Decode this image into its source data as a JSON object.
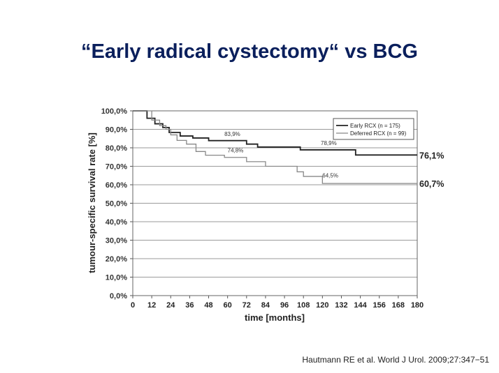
{
  "slide": {
    "title": "“Early radical cystectomy“ vs BCG",
    "citation": "Hautmann  RE et al. World J Urol. 2009;27:347−51"
  },
  "chart_data": {
    "type": "line",
    "step": true,
    "xlabel": "time [months]",
    "ylabel": "tumour-specific survival rate [%]",
    "xlim": [
      0,
      180
    ],
    "ylim": [
      0,
      100
    ],
    "x_ticks": [
      0,
      12,
      24,
      36,
      48,
      60,
      72,
      84,
      96,
      108,
      120,
      132,
      144,
      156,
      168,
      180
    ],
    "y_ticks": [
      0,
      10,
      20,
      30,
      40,
      50,
      60,
      70,
      80,
      90,
      100
    ],
    "y_tick_labels": [
      "0,0%",
      "10,0%",
      "20,0%",
      "30,0%",
      "40,0%",
      "50,0%",
      "60,0%",
      "70,0%",
      "80,0%",
      "90,0%",
      "100,0%"
    ],
    "grid": true,
    "legend_position": "top-right",
    "series": [
      {
        "name": "Early RCX (n = 175)",
        "color": "#222222",
        "x": [
          0,
          6,
          9,
          14,
          19,
          23,
          30,
          38,
          48,
          72,
          79,
          106,
          141,
          180
        ],
        "y": [
          100,
          100,
          96,
          93,
          91,
          88.3,
          86.4,
          85.3,
          83.9,
          82,
          80.4,
          78.9,
          76.1,
          76.1
        ],
        "end_label": "76,1%"
      },
      {
        "name": "Deferred RCX (n = 99)",
        "color": "#888888",
        "x": [
          0,
          8,
          12,
          17,
          21,
          24,
          28,
          34,
          40,
          46,
          58,
          72,
          84,
          104,
          108,
          120,
          180
        ],
        "y": [
          100,
          100,
          95,
          92,
          90,
          87,
          84,
          82,
          78,
          76,
          74.8,
          72.5,
          70,
          67,
          64.5,
          60.7,
          60.7
        ],
        "end_label": "60,7%"
      }
    ],
    "annotations": [
      {
        "text": "83,9%",
        "x": 63,
        "y": 86.5
      },
      {
        "text": "78,9%",
        "x": 124,
        "y": 81.5
      },
      {
        "text": "74,8%",
        "x": 65,
        "y": 77.5
      },
      {
        "text": "64,5%",
        "x": 125,
        "y": 64
      }
    ]
  }
}
